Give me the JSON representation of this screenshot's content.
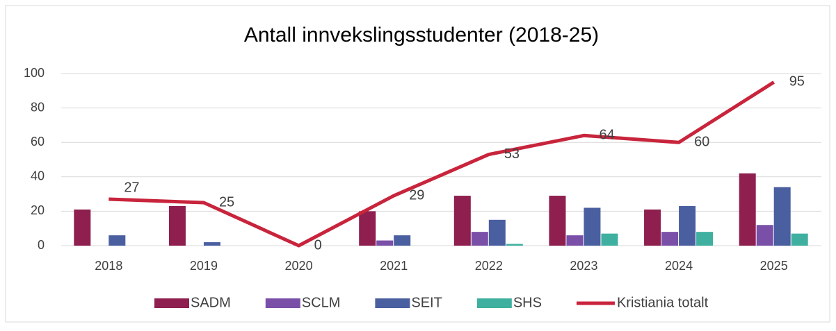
{
  "chart_data": {
    "type": "bar",
    "title": "Antall innvekslingsstudenter (2018-25)",
    "categories": [
      "2018",
      "2019",
      "2020",
      "2021",
      "2022",
      "2023",
      "2024",
      "2025"
    ],
    "series": [
      {
        "name": "SADM",
        "color": "#8e1f4f",
        "type": "bar",
        "values": [
          21,
          23,
          0,
          20,
          29,
          29,
          21,
          42
        ]
      },
      {
        "name": "SCLM",
        "color": "#7a4fa8",
        "type": "bar",
        "values": [
          0,
          0,
          0,
          3,
          8,
          6,
          8,
          12
        ]
      },
      {
        "name": "SEIT",
        "color": "#4a5fa0",
        "type": "bar",
        "values": [
          6,
          2,
          0,
          6,
          15,
          22,
          23,
          34
        ]
      },
      {
        "name": "SHS",
        "color": "#3fb0a0",
        "type": "bar",
        "values": [
          0,
          0,
          0,
          0,
          1,
          7,
          8,
          7
        ]
      },
      {
        "name": "Kristiania totalt",
        "color": "#c8243c",
        "type": "line",
        "values": [
          27,
          25,
          0,
          29,
          53,
          64,
          60,
          95
        ]
      }
    ],
    "ylim": [
      0,
      100
    ],
    "yticks": [
      0,
      20,
      40,
      60,
      80,
      100
    ],
    "grid": true,
    "legend": "bottom"
  }
}
